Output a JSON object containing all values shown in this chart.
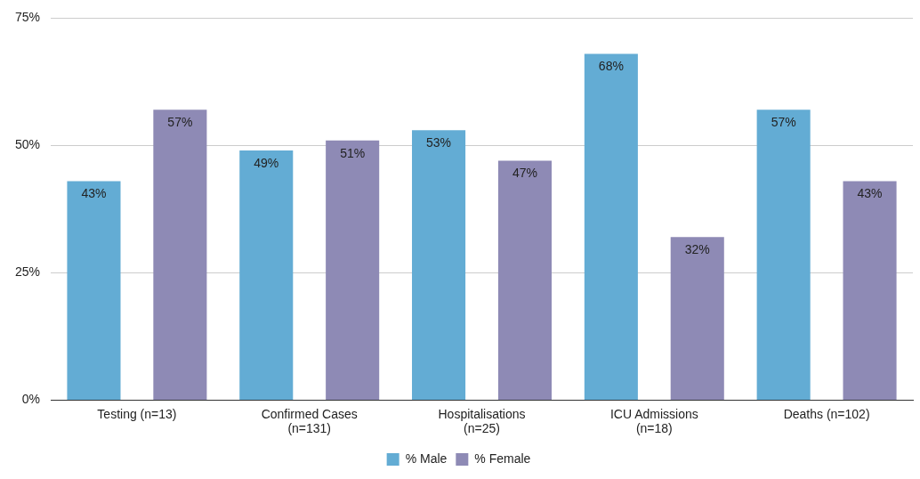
{
  "chart_data": {
    "type": "bar",
    "categories": [
      "Testing (n=13)",
      "Confirmed Cases\n(n=131)",
      "Hospitalisations\n(n=25)",
      "ICU Admissions\n(n=18)",
      "Deaths (n=102)"
    ],
    "series": [
      {
        "name": "% Male",
        "color": "#63acd4",
        "values": [
          43,
          49,
          53,
          68,
          57
        ],
        "value_labels": [
          "43%",
          "49%",
          "53%",
          "68%",
          "57%"
        ]
      },
      {
        "name": "% Female",
        "color": "#8e8ab5",
        "values": [
          57,
          51,
          47,
          32,
          43
        ],
        "value_labels": [
          "57%",
          "51%",
          "47%",
          "32%",
          "43%"
        ]
      }
    ],
    "ylim": [
      0,
      75
    ],
    "yticks": [
      {
        "value": 0,
        "label": "0%"
      },
      {
        "value": 25,
        "label": "25%"
      },
      {
        "value": 50,
        "label": "50%"
      },
      {
        "value": 75,
        "label": "75%"
      }
    ],
    "grid": "y",
    "legend": "bottom"
  }
}
